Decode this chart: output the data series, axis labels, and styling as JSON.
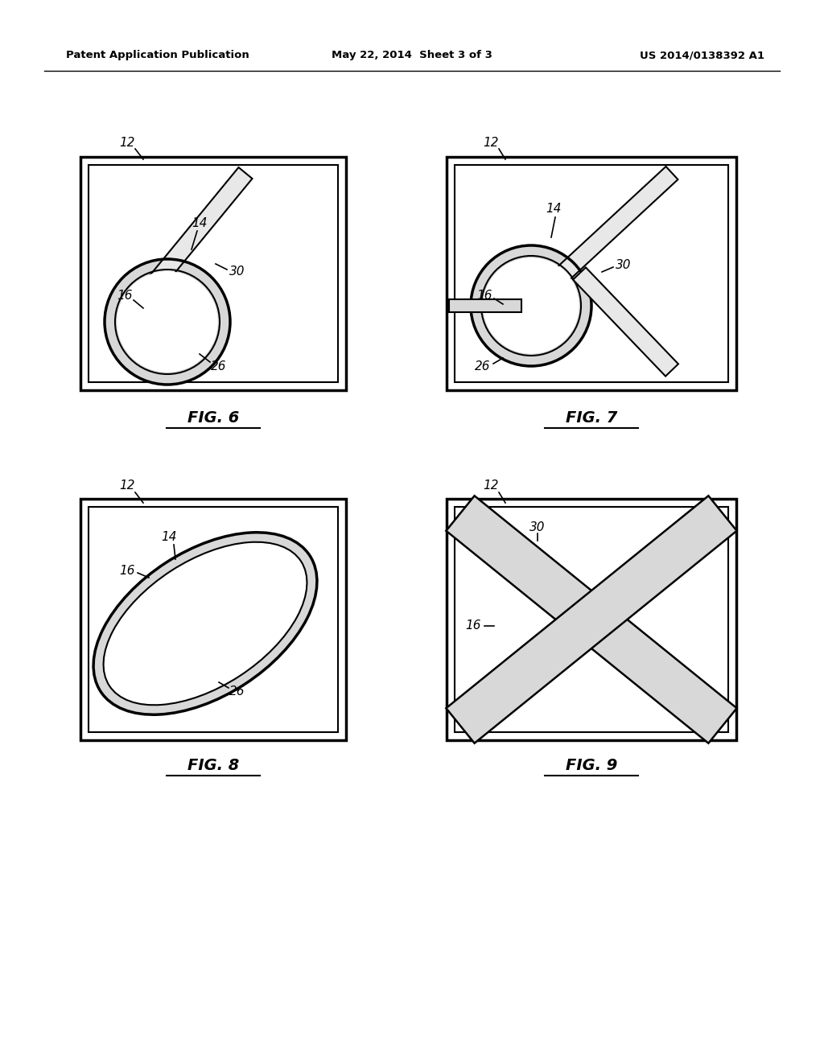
{
  "header_left": "Patent Application Publication",
  "header_mid": "May 22, 2014  Sheet 3 of 3",
  "header_right": "US 2014/0138392 A1",
  "fig6_label": "FIG. 6",
  "fig7_label": "FIG. 7",
  "fig8_label": "FIG. 8",
  "fig9_label": "FIG. 9",
  "background": "#ffffff",
  "line_color": "#000000"
}
